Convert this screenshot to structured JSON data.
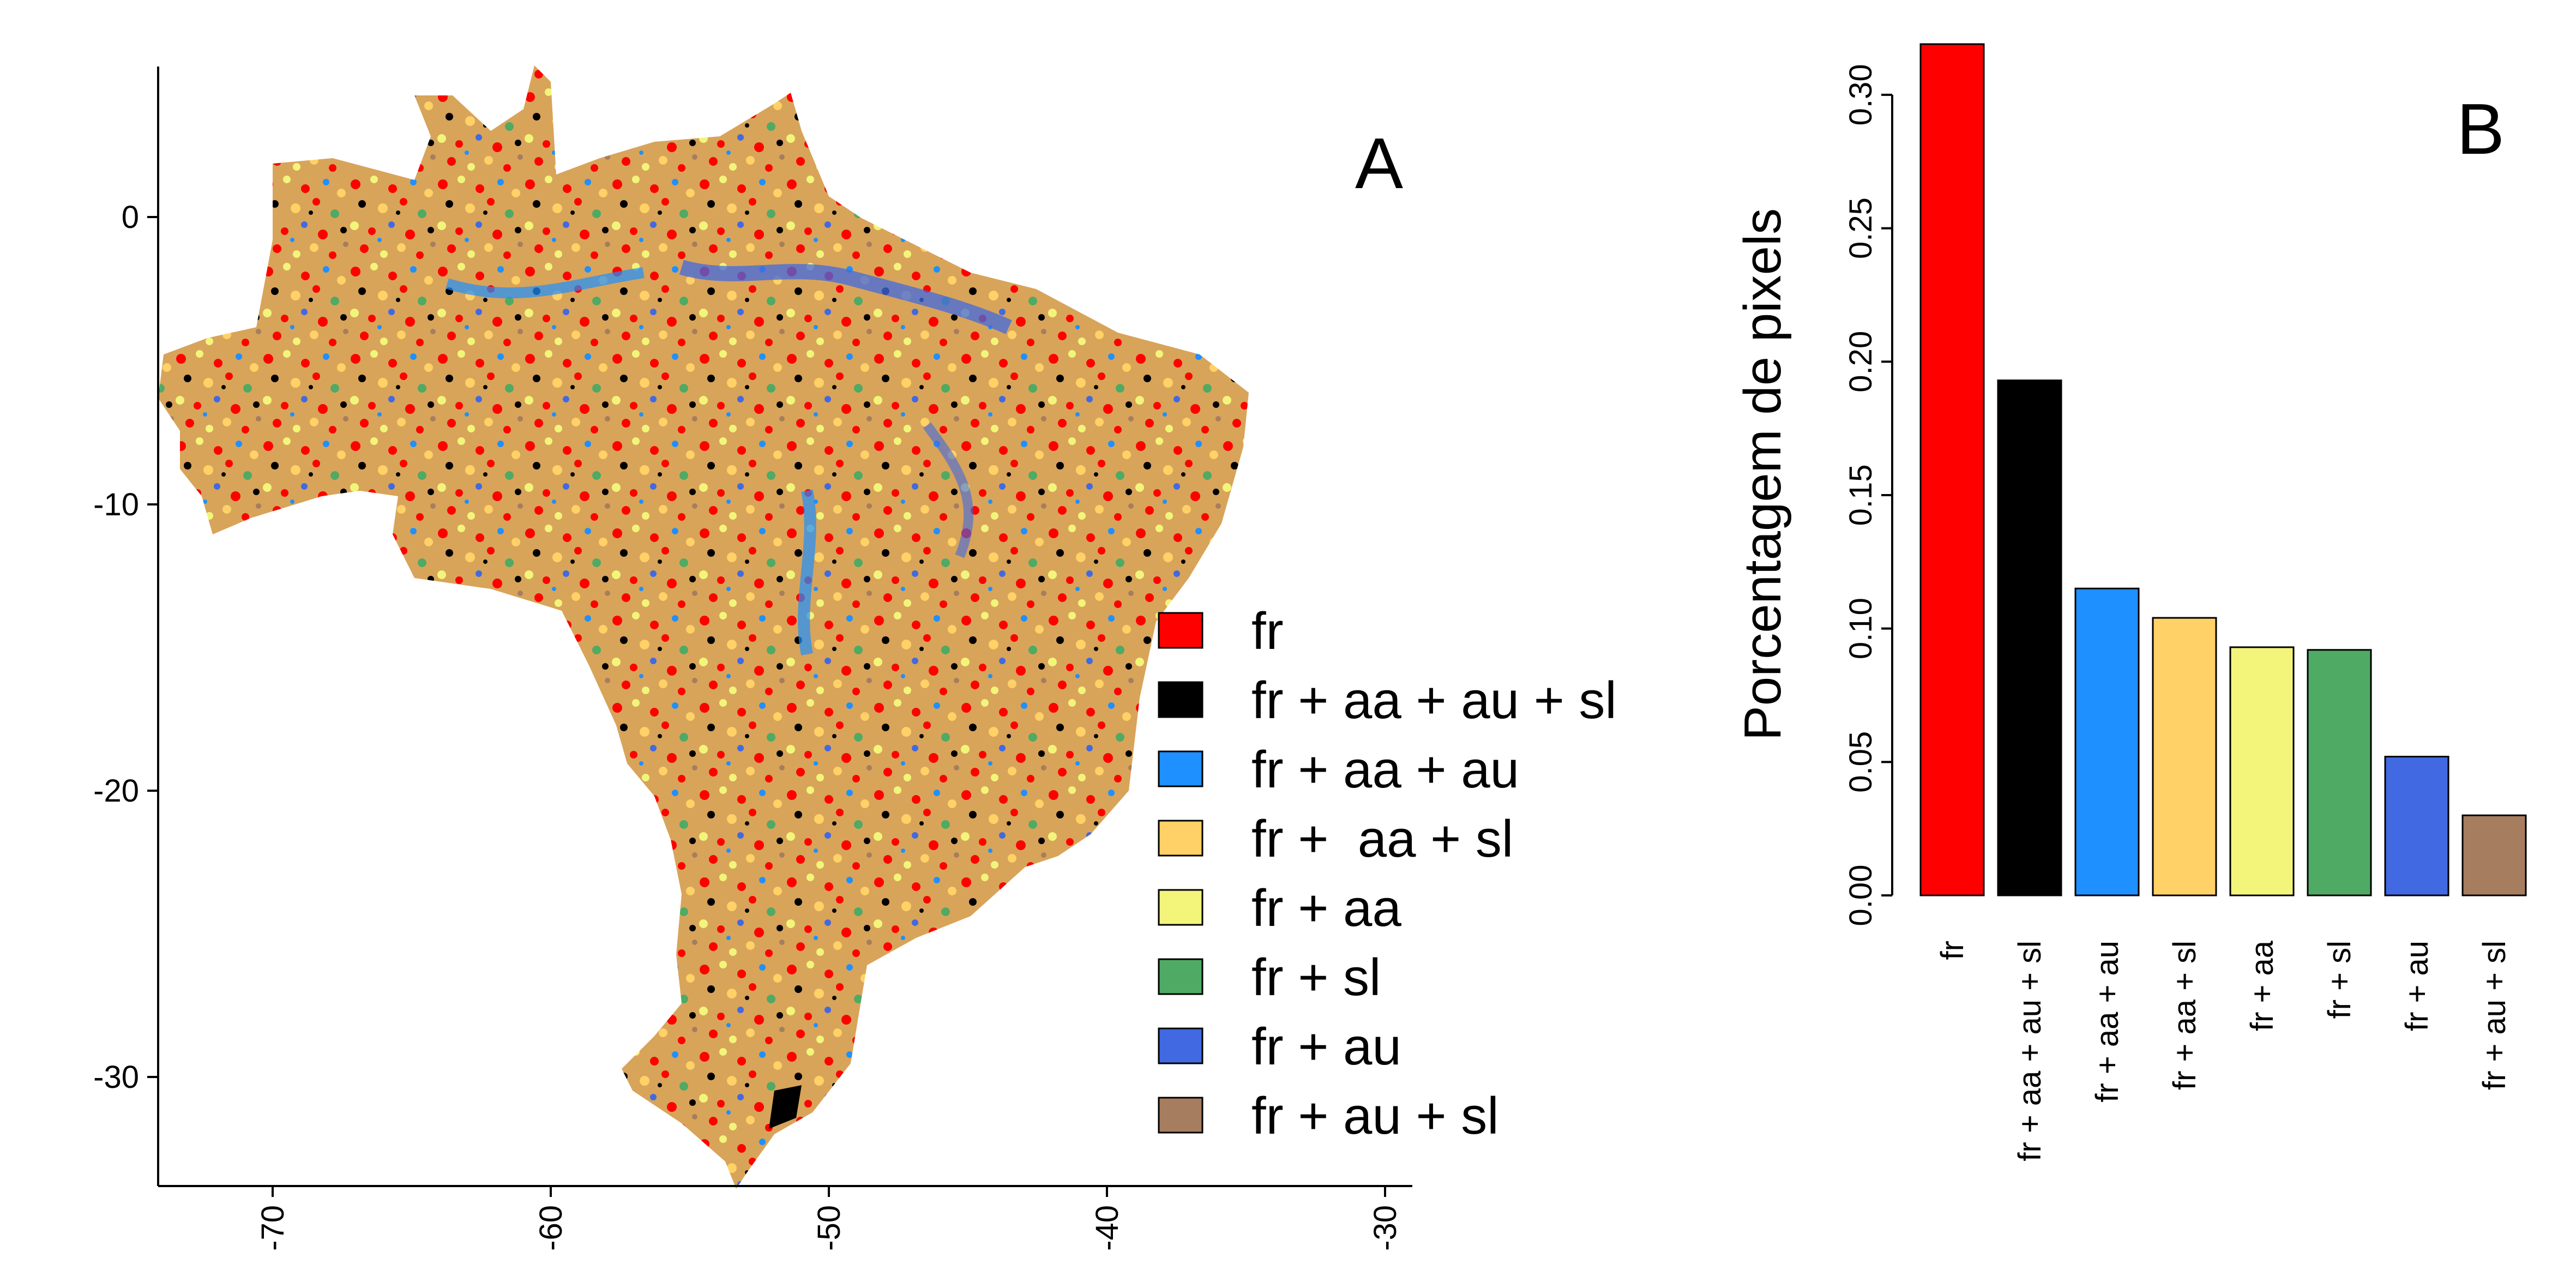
{
  "colors": {
    "fr": "#FF0000",
    "fr + aa + au + sl": "#000000",
    "fr + aa + au": "#1E90FF",
    "fr +  aa + sl": "#FFD166",
    "fr + aa": "#F2F57A",
    "fr + sl": "#4FAA64",
    "fr + au": "#4169E1",
    "fr + au + sl": "#A67D5E"
  },
  "panel_a": {
    "letter": "A",
    "x_ticks": [
      "-70",
      "-60",
      "-50",
      "-40",
      "-30"
    ],
    "y_ticks": [
      "0",
      "-10",
      "-20",
      "-30"
    ],
    "legend": [
      "fr",
      "fr + aa + au + sl",
      "fr + aa + au",
      "fr +  aa + sl",
      "fr + aa",
      "fr + sl",
      "fr + au",
      "fr + au + sl"
    ]
  },
  "chart_data": [
    {
      "type": "heatmap",
      "description_of_content": "",
      "xlim": [
        -74,
        -29
      ],
      "ylim": [
        -34,
        5
      ],
      "x_ticks": [
        -70,
        -60,
        -50,
        -40,
        -30
      ],
      "y_ticks": [
        0,
        -10,
        -20,
        -30
      ],
      "legend_placement": "bottom-right",
      "categories": [
        "fr",
        "fr + aa + au + sl",
        "fr + aa + au",
        "fr +  aa + sl",
        "fr + aa",
        "fr + sl",
        "fr + au",
        "fr + au + sl"
      ],
      "title": "A"
    },
    {
      "type": "bar",
      "title": "B",
      "ylabel": "Porcentagem de pixels",
      "xlabel": "",
      "categories": [
        "fr",
        "fr + aa + au + sl",
        "fr + aa + au",
        "fr +  aa + sl",
        "fr + aa",
        "fr + sl",
        "fr + au",
        "fr + au + sl"
      ],
      "values": [
        0.319,
        0.193,
        0.115,
        0.104,
        0.093,
        0.092,
        0.052,
        0.03
      ],
      "ylim": [
        0,
        0.32
      ],
      "y_ticks": [
        "0.00",
        "0.05",
        "0.10",
        "0.15",
        "0.20",
        "0.25",
        "0.30"
      ],
      "grid": false
    }
  ]
}
